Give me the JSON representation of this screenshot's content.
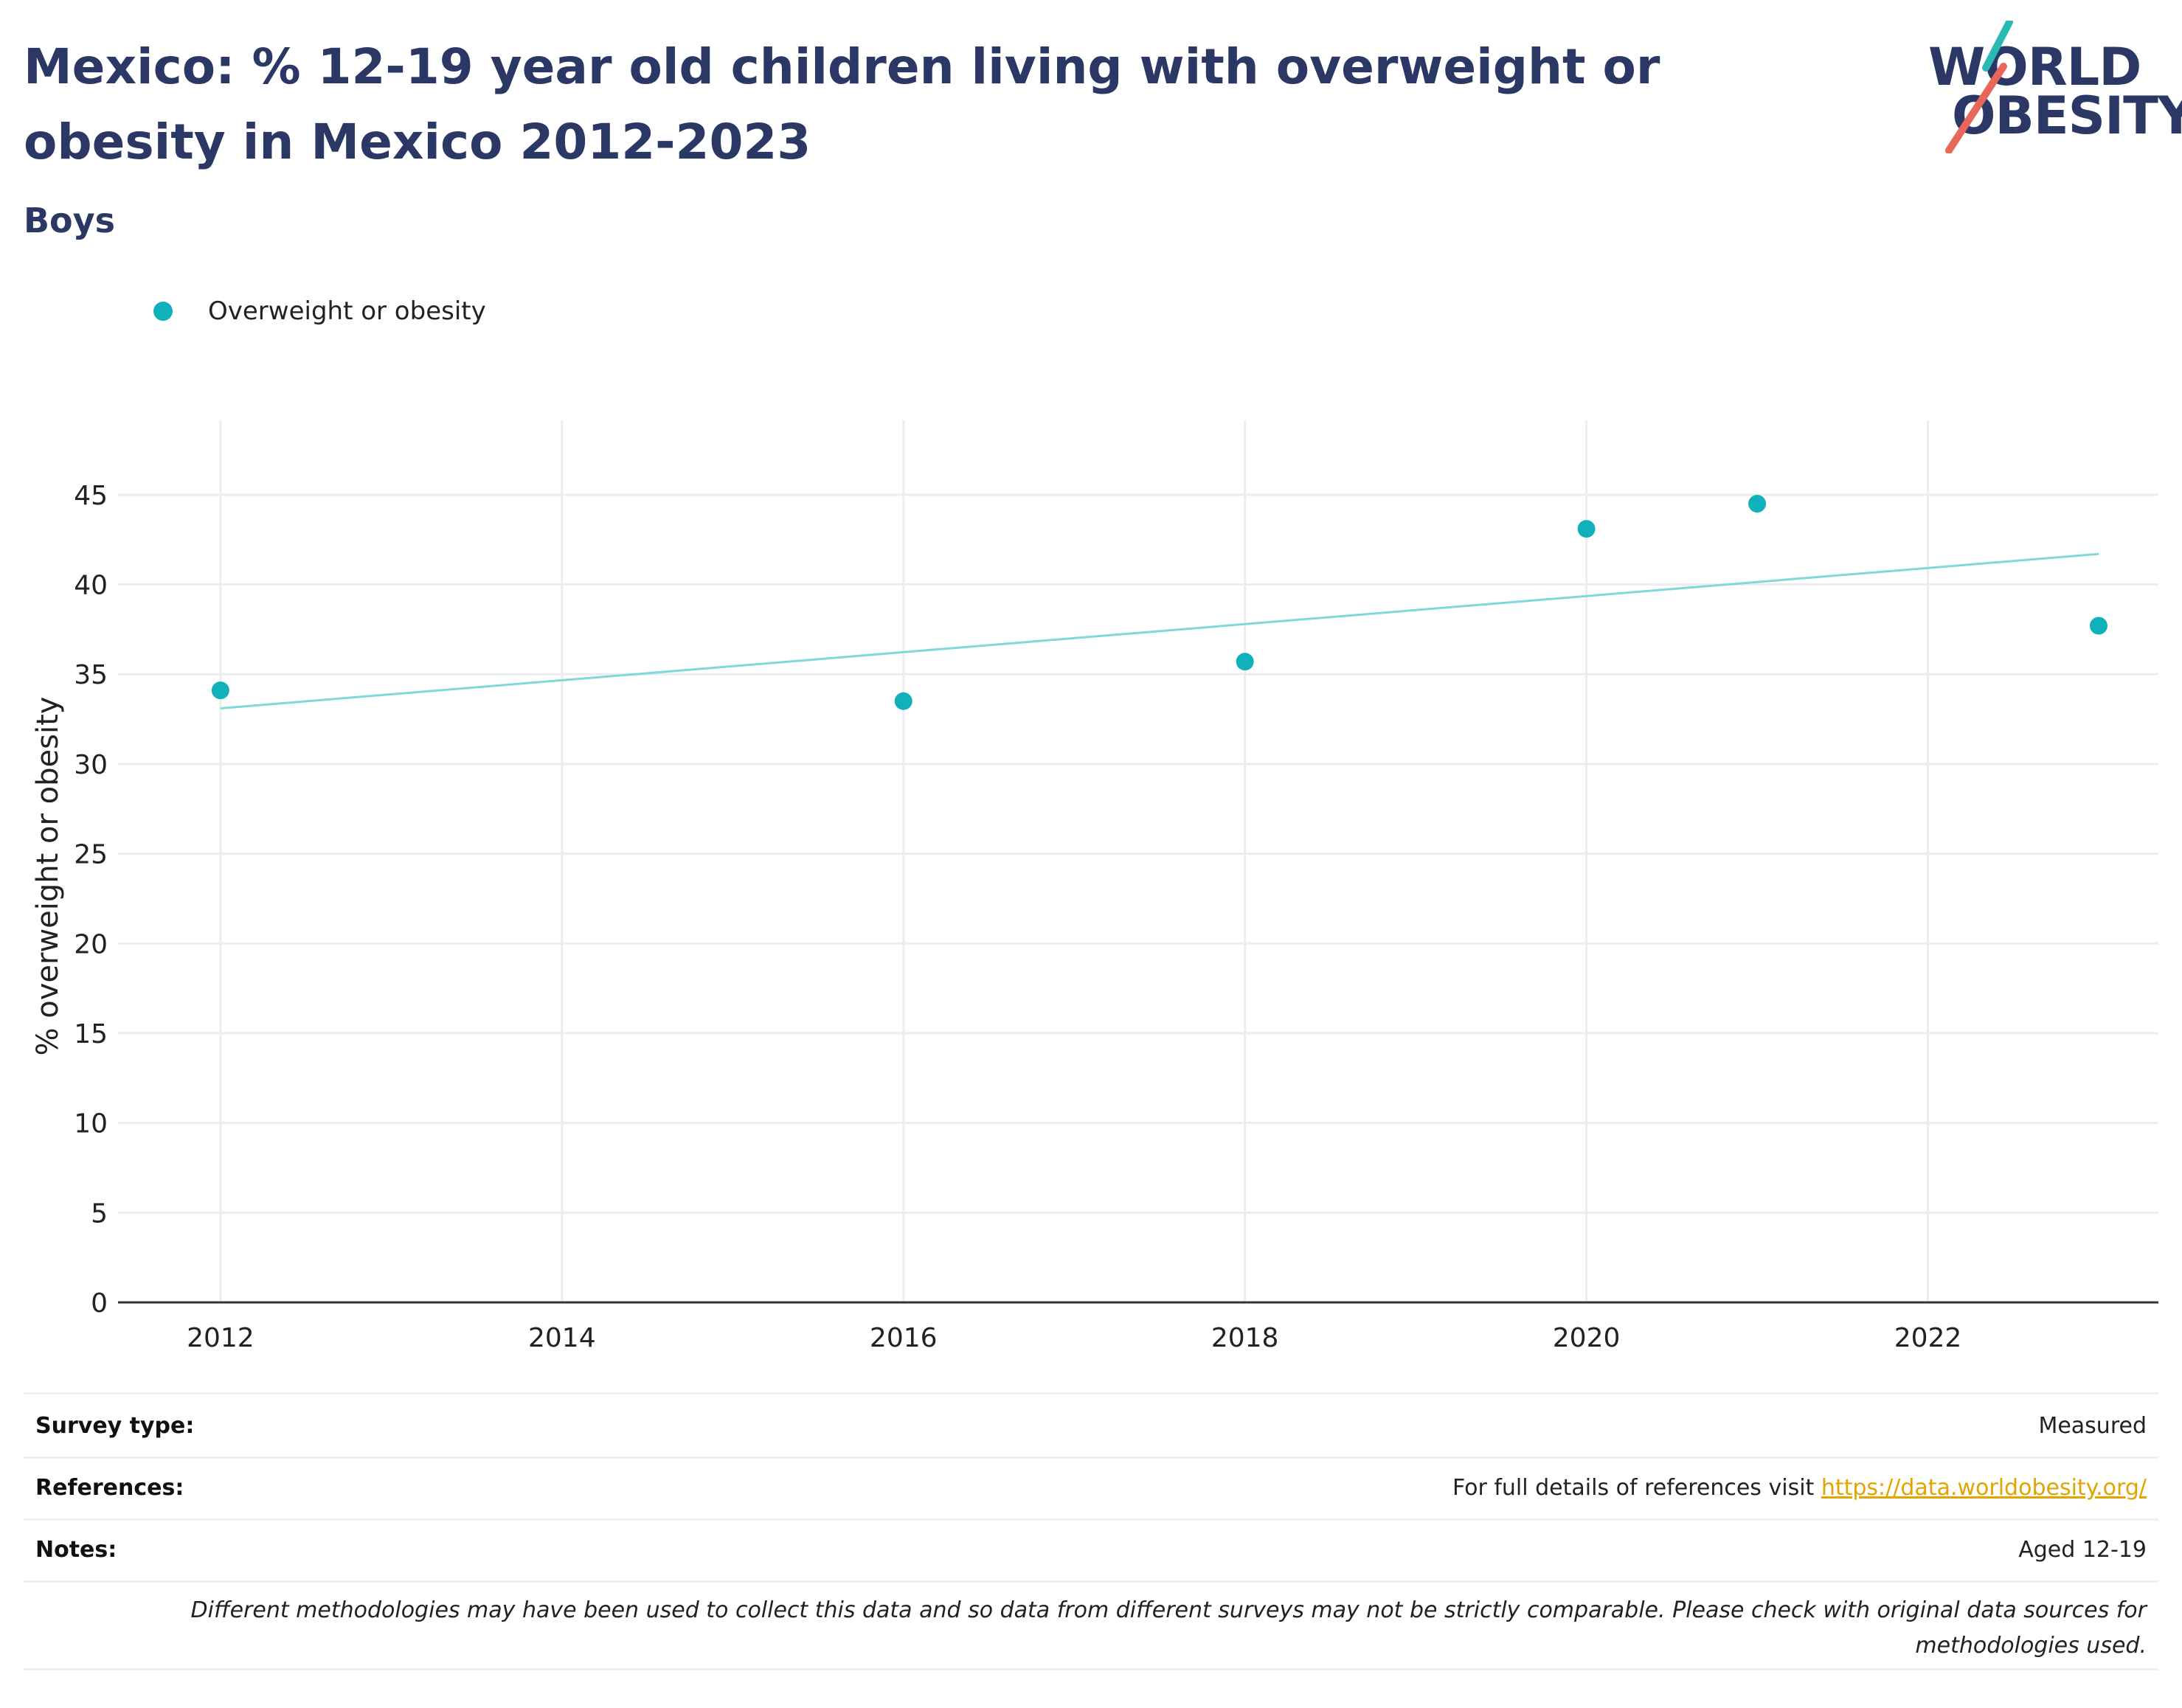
{
  "header": {
    "title": "Mexico: % 12-19 year old children living with overweight or obesity in Mexico 2012-2023",
    "subtitle": "Boys"
  },
  "logo": {
    "line1": "WORLD",
    "line2": "OBESITY",
    "accent_teal": "#2bb9b4",
    "accent_red": "#e8675a"
  },
  "colors": {
    "series": "#10b1bb",
    "trend": "#7fd8d9",
    "grid": "#ebedf3",
    "axis": "#333333",
    "title": "#2b3765"
  },
  "chart_data": {
    "type": "scatter",
    "title": "Mexico: % 12-19 year old children living with overweight or obesity in Mexico 2012-2023",
    "subtitle": "Boys",
    "xlabel": "",
    "ylabel": "% overweight or obesity",
    "xlim": [
      2011.4,
      2023.35
    ],
    "ylim": [
      0,
      47.5
    ],
    "x_ticks": [
      2012,
      2014,
      2016,
      2018,
      2020,
      2022
    ],
    "y_ticks": [
      0,
      5,
      10,
      15,
      20,
      25,
      30,
      35,
      40,
      45
    ],
    "grid": true,
    "legend_position": "top-left",
    "series": [
      {
        "name": "Overweight or obesity",
        "x": [
          2012,
          2016,
          2018,
          2020,
          2021,
          2023
        ],
        "y": [
          34.1,
          33.5,
          35.7,
          43.1,
          44.5,
          37.7
        ]
      }
    ],
    "trendline": {
      "x": [
        2012,
        2023
      ],
      "y": [
        33.1,
        41.7
      ]
    }
  },
  "meta": [
    {
      "key": "Survey type:",
      "value": "Measured"
    },
    {
      "key": "References:",
      "value": "For full details of references visit ",
      "link": "https://data.worldobesity.org/"
    },
    {
      "key": "Notes:",
      "value": "Aged 12-19"
    }
  ],
  "disclaimer": "Different methodologies may have been used to collect this data and so data from different surveys may not be strictly comparable. Please check with original data sources for methodologies used."
}
